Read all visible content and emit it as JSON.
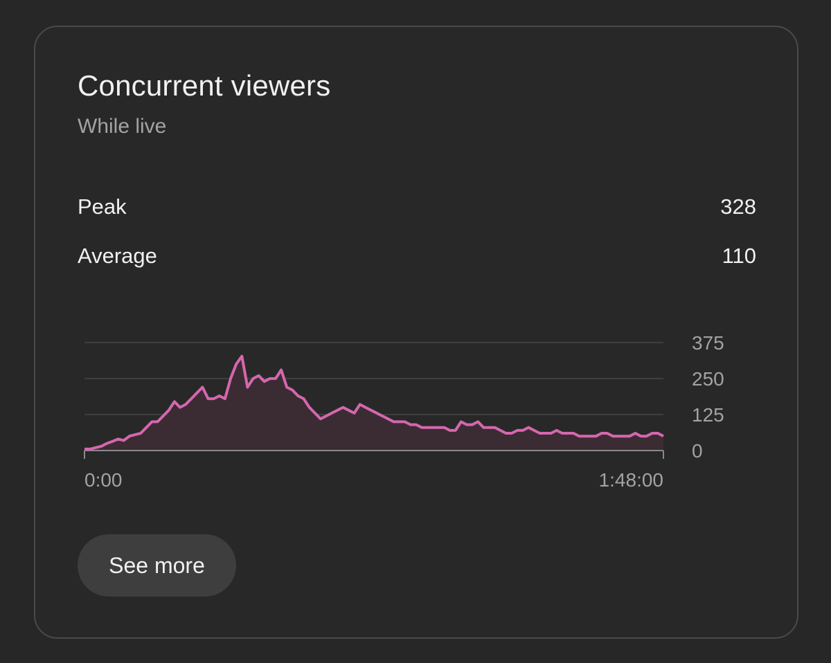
{
  "card": {
    "title": "Concurrent viewers",
    "subtitle": "While live"
  },
  "metrics": {
    "peak_label": "Peak",
    "peak_value": "328",
    "average_label": "Average",
    "average_value": "110"
  },
  "chart_data": {
    "type": "area",
    "title": "",
    "xlabel": "",
    "ylabel": "",
    "x_tick_labels": [
      "0:00",
      "1:48:00"
    ],
    "y_ticks": [
      0,
      125,
      250,
      375
    ],
    "y_tick_labels": [
      "0",
      "125",
      "250",
      "375"
    ],
    "ylim": [
      0,
      375
    ],
    "xlim_minutes": [
      0,
      108
    ],
    "line_color": "#d567ae",
    "fill_color": "#3b2c33",
    "series": [
      {
        "name": "Concurrent viewers",
        "values": [
          5,
          5,
          10,
          15,
          25,
          32,
          40,
          35,
          50,
          55,
          60,
          80,
          100,
          100,
          120,
          140,
          170,
          150,
          160,
          180,
          200,
          220,
          180,
          180,
          190,
          180,
          250,
          300,
          328,
          220,
          250,
          260,
          240,
          250,
          250,
          280,
          220,
          210,
          190,
          180,
          150,
          130,
          110,
          120,
          130,
          140,
          150,
          140,
          130,
          160,
          150,
          140,
          130,
          120,
          110,
          100,
          100,
          100,
          90,
          90,
          80,
          80,
          80,
          80,
          80,
          70,
          70,
          100,
          90,
          90,
          100,
          80,
          80,
          80,
          70,
          60,
          60,
          70,
          70,
          80,
          70,
          60,
          60,
          60,
          70,
          60,
          60,
          60,
          50,
          50,
          50,
          50,
          60,
          60,
          50,
          50,
          50,
          50,
          60,
          50,
          50,
          60,
          60,
          50
        ]
      }
    ]
  },
  "actions": {
    "see_more_label": "See more"
  }
}
